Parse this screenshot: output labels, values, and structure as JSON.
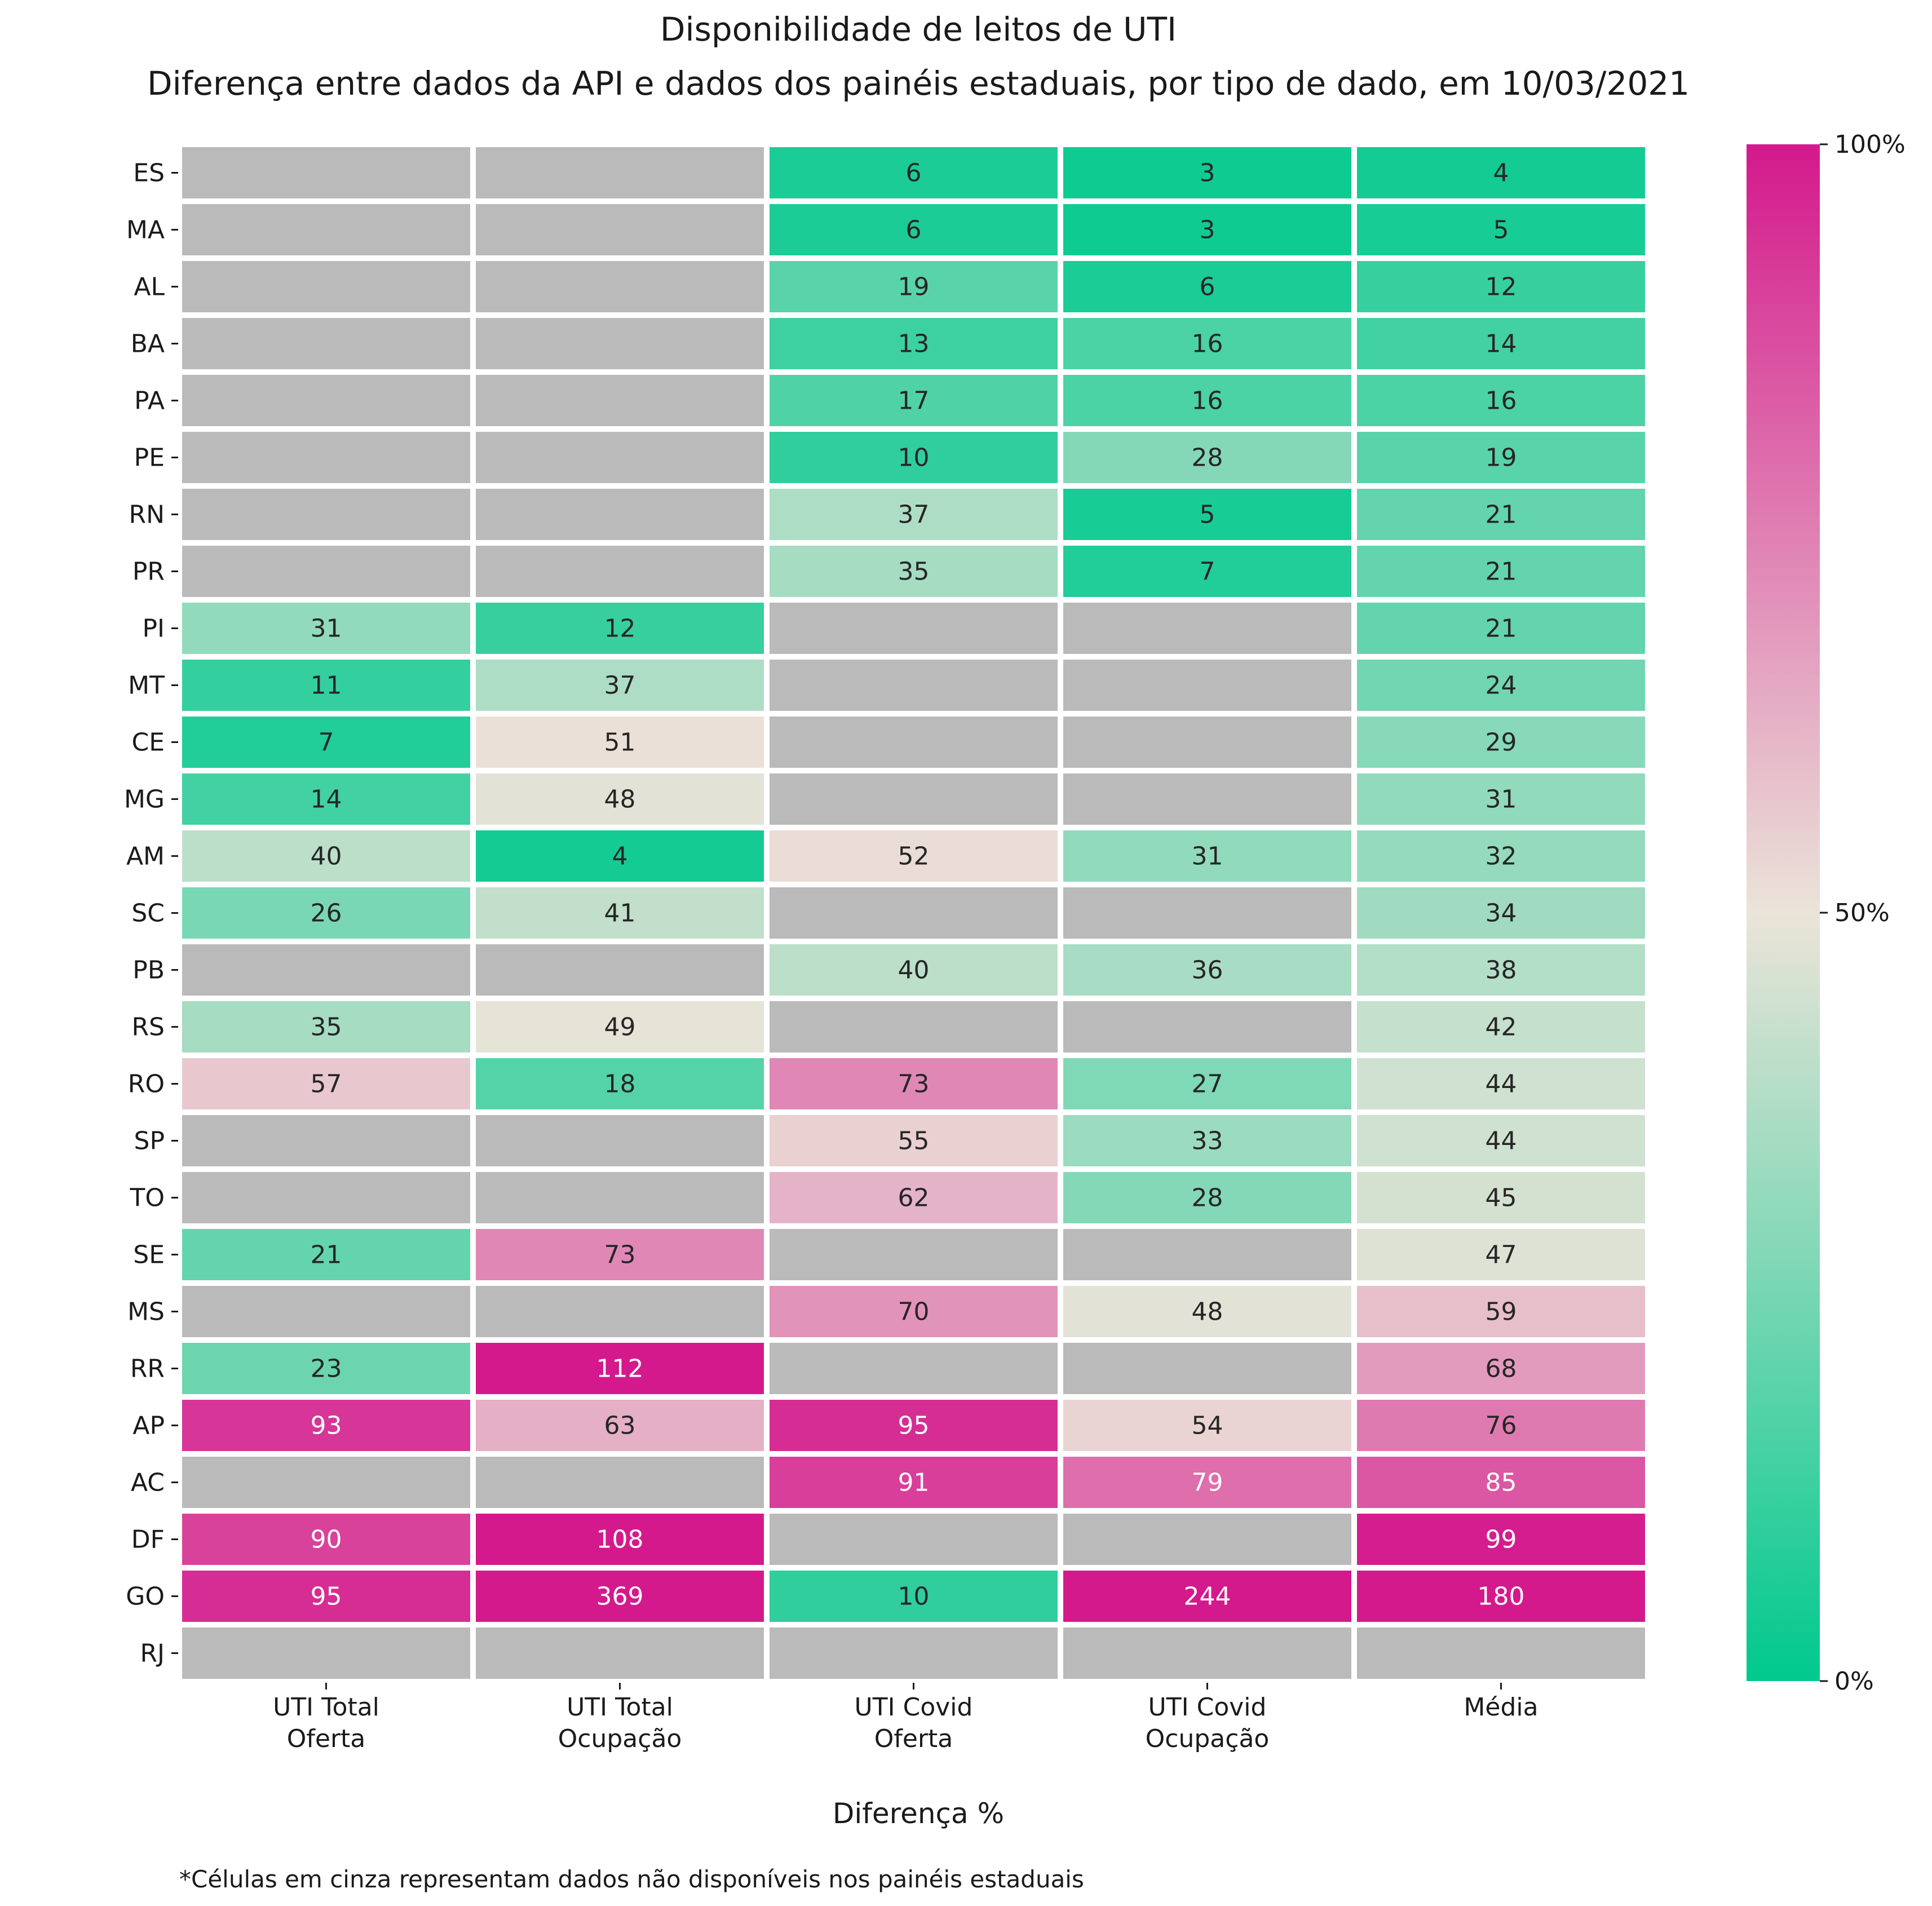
{
  "chart_data": {
    "type": "heatmap",
    "title": "Disponibilidade de leitos de UTI",
    "subtitle": "Diferença entre dados da API e dados dos painéis estaduais, por tipo de dado, em 10/03/2021",
    "xlabel": "Diferença %",
    "footnote": "*Células em cinza representam dados não disponíveis nos painéis estaduais",
    "columns": [
      [
        "UTI Total",
        "Oferta"
      ],
      [
        "UTI Total",
        "Ocupação"
      ],
      [
        "UTI Covid",
        "Oferta"
      ],
      [
        "UTI Covid",
        "Ocupação"
      ],
      [
        "Média"
      ]
    ],
    "rows": [
      "ES",
      "MA",
      "AL",
      "BA",
      "PA",
      "PE",
      "RN",
      "PR",
      "PI",
      "MT",
      "CE",
      "MG",
      "AM",
      "SC",
      "PB",
      "RS",
      "RO",
      "SP",
      "TO",
      "SE",
      "MS",
      "RR",
      "AP",
      "AC",
      "DF",
      "GO",
      "RJ"
    ],
    "values": [
      [
        null,
        null,
        6,
        3,
        4
      ],
      [
        null,
        null,
        6,
        3,
        5
      ],
      [
        null,
        null,
        19,
        6,
        12
      ],
      [
        null,
        null,
        13,
        16,
        14
      ],
      [
        null,
        null,
        17,
        16,
        16
      ],
      [
        null,
        null,
        10,
        28,
        19
      ],
      [
        null,
        null,
        37,
        5,
        21
      ],
      [
        null,
        null,
        35,
        7,
        21
      ],
      [
        31,
        12,
        null,
        null,
        21
      ],
      [
        11,
        37,
        null,
        null,
        24
      ],
      [
        7,
        51,
        null,
        null,
        29
      ],
      [
        14,
        48,
        null,
        null,
        31
      ],
      [
        40,
        4,
        52,
        31,
        32
      ],
      [
        26,
        41,
        null,
        null,
        34
      ],
      [
        null,
        null,
        40,
        36,
        38
      ],
      [
        35,
        49,
        null,
        null,
        42
      ],
      [
        57,
        18,
        73,
        27,
        44
      ],
      [
        null,
        null,
        55,
        33,
        44
      ],
      [
        null,
        null,
        62,
        28,
        45
      ],
      [
        21,
        73,
        null,
        null,
        47
      ],
      [
        null,
        null,
        70,
        48,
        59
      ],
      [
        23,
        112,
        null,
        null,
        68
      ],
      [
        93,
        63,
        95,
        54,
        76
      ],
      [
        null,
        null,
        91,
        79,
        85
      ],
      [
        90,
        108,
        null,
        null,
        99
      ],
      [
        95,
        369,
        10,
        244,
        180
      ],
      [
        null,
        null,
        null,
        null,
        null
      ]
    ],
    "colorbar": {
      "range": [
        0,
        100
      ],
      "ticks": [
        "0%",
        "50%",
        "100%"
      ],
      "colors": {
        "low": "#00c98d",
        "mid": "#ebe4d9",
        "high": "#d4198c"
      }
    },
    "missing_color": "#bababa"
  }
}
